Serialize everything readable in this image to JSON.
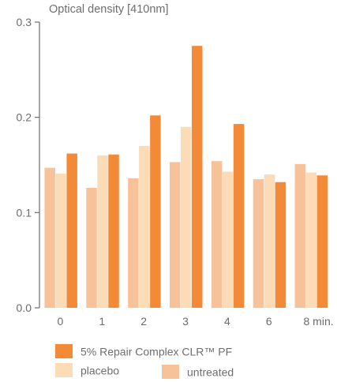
{
  "chart_data": {
    "type": "bar",
    "title": "",
    "ylabel": "Optical density [410nm]",
    "xlabel": "",
    "categories": [
      "0",
      "1",
      "2",
      "3",
      "4",
      "6",
      "8 min."
    ],
    "ylim": [
      0,
      0.3
    ],
    "yticks": [
      "0.0",
      "0.1",
      "0.2",
      "0.3"
    ],
    "series": [
      {
        "name": "untreated",
        "color": "#f7c29a",
        "values": [
          0.147,
          0.126,
          0.136,
          0.153,
          0.154,
          0.135,
          0.151
        ]
      },
      {
        "name": "placebo",
        "color": "#fcdcb6",
        "values": [
          0.141,
          0.16,
          0.17,
          0.19,
          0.143,
          0.14,
          0.142
        ]
      },
      {
        "name": "5% Repair Complex CLR™ PF",
        "color": "#f28a38",
        "values": [
          0.162,
          0.161,
          0.202,
          0.275,
          0.193,
          0.132,
          0.139
        ]
      }
    ],
    "legend_order": [
      2,
      1,
      0
    ],
    "grid": false
  }
}
